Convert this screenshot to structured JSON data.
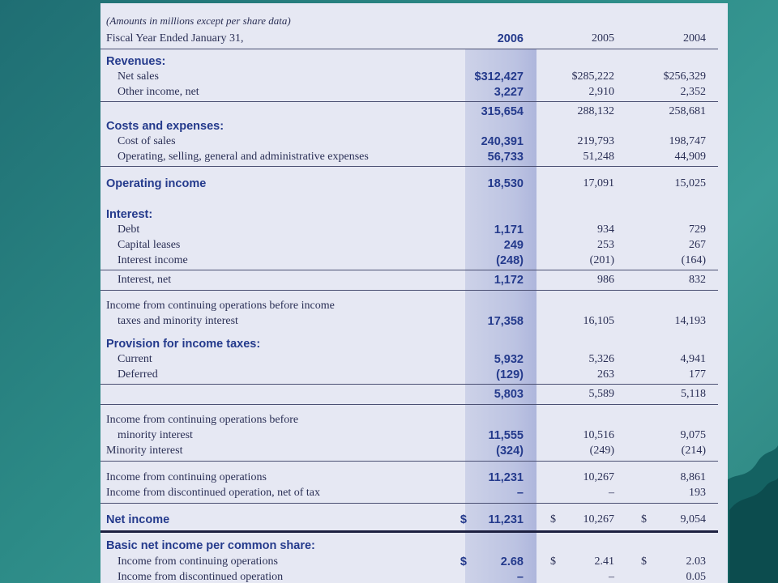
{
  "header": {
    "note": "(Amounts in millions except per share data)",
    "fy_label": "Fiscal Year Ended January 31,",
    "years": [
      "2006",
      "2005",
      "2004"
    ]
  },
  "revenues": {
    "title": "Revenues:",
    "net_sales": {
      "label": "Net sales",
      "v": [
        "$312,427",
        "$285,222",
        "$256,329"
      ]
    },
    "other_income": {
      "label": "Other income, net",
      "v": [
        "3,227",
        "2,910",
        "2,352"
      ]
    },
    "total": {
      "v": [
        "315,654",
        "288,132",
        "258,681"
      ]
    }
  },
  "costs": {
    "title": "Costs and expenses:",
    "cost_of_sales": {
      "label": "Cost of sales",
      "v": [
        "240,391",
        "219,793",
        "198,747"
      ]
    },
    "opex": {
      "label": "Operating, selling, general and administrative expenses",
      "v": [
        "56,733",
        "51,248",
        "44,909"
      ]
    }
  },
  "operating_income": {
    "label": "Operating income",
    "v": [
      "18,530",
      "17,091",
      "15,025"
    ]
  },
  "interest": {
    "title": "Interest:",
    "debt": {
      "label": "Debt",
      "v": [
        "1,171",
        "934",
        "729"
      ]
    },
    "capital_leases": {
      "label": "Capital leases",
      "v": [
        "249",
        "253",
        "267"
      ]
    },
    "interest_income": {
      "label": "Interest income",
      "v": [
        "(248)",
        "(201)",
        "(164)"
      ]
    },
    "net": {
      "label": "Interest, net",
      "v": [
        "1,172",
        "986",
        "832"
      ]
    }
  },
  "pretax": {
    "label1": "Income from continuing operations before income",
    "label2": "taxes and minority interest",
    "v": [
      "17,358",
      "16,105",
      "14,193"
    ]
  },
  "taxes": {
    "title": "Provision for income taxes:",
    "current": {
      "label": "Current",
      "v": [
        "5,932",
        "5,326",
        "4,941"
      ]
    },
    "deferred": {
      "label": "Deferred",
      "v": [
        "(129)",
        "263",
        "177"
      ]
    },
    "total": {
      "v": [
        "5,803",
        "5,589",
        "5,118"
      ]
    }
  },
  "before_minority": {
    "label1": "Income from continuing operations before",
    "label2": "minority interest",
    "v": [
      "11,555",
      "10,516",
      "9,075"
    ]
  },
  "minority": {
    "label": "Minority interest",
    "v": [
      "(324)",
      "(249)",
      "(214)"
    ]
  },
  "continuing": {
    "label": "Income from continuing operations",
    "v": [
      "11,231",
      "10,267",
      "8,861"
    ]
  },
  "discontinued": {
    "label": "Income from discontinued operation, net of tax",
    "v": [
      "–",
      "–",
      "193"
    ]
  },
  "net_income": {
    "label": "Net income",
    "dollar": "$",
    "v": [
      "11,231",
      "10,267",
      "9,054"
    ]
  },
  "basic_eps": {
    "title": "Basic net income per common share:",
    "continuing": {
      "label": "Income from continuing operations",
      "dollar": "$",
      "v": [
        "2.68",
        "2.41",
        "2.03"
      ]
    },
    "discontinued": {
      "label": "Income from discontinued operation",
      "v": [
        "–",
        "–",
        "0.05"
      ]
    }
  }
}
